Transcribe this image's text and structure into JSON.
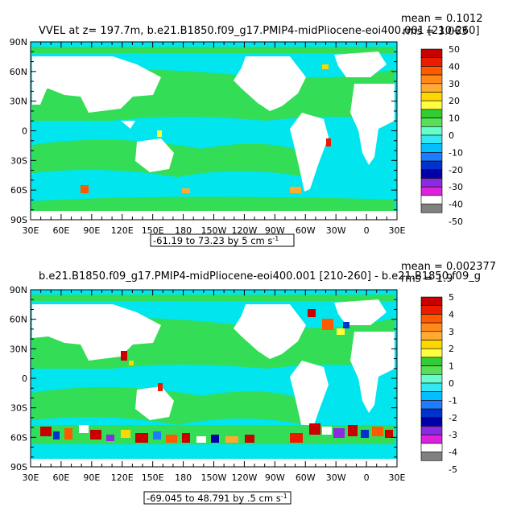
{
  "chart_data": [
    {
      "type": "heatmap",
      "title": "VVEL at z= 197.7m, b.e21.B1850.f09_g17.PMIP4-midPliocene-eoi400.001 [210-260]",
      "stats": {
        "mean": "mean = 0.1012",
        "rms": "rms = 3.063"
      },
      "x_ticks": [
        "30E",
        "60E",
        "90E",
        "120E",
        "150E",
        "180",
        "150W",
        "120W",
        "90W",
        "60W",
        "30W",
        "0",
        "30E"
      ],
      "y_ticks": [
        "90N",
        "60N",
        "30N",
        "0",
        "30S",
        "60S",
        "90S"
      ],
      "range_label": "-61.19 to 73.23 by 5 cm s",
      "range_sup": "-1",
      "colorbar": {
        "levels": [
          "50",
          "40",
          "30",
          "20",
          "10",
          "0",
          "-10",
          "-20",
          "-30",
          "-40",
          "-50"
        ],
        "colors": [
          "#c80000",
          "#ee1a00",
          "#ff5a00",
          "#ff8a1a",
          "#ffaa33",
          "#ffd700",
          "#ffff40",
          "#33cc33",
          "#55e055",
          "#66ffcc",
          "#33e8f0",
          "#00bfff",
          "#1e7cff",
          "#0033cc",
          "#0000aa",
          "#8a2be2",
          "#dd22dd",
          "#ffffff",
          "#808080"
        ]
      }
    },
    {
      "type": "heatmap",
      "title": "b.e21.B1850.f09_g17.PMIP4-midPliocene-eoi400.001 [210-260] - b.e21.B1850.f09_g",
      "stats": {
        "mean": "mean = 0.002377",
        "rms": "rms = 1.9"
      },
      "x_ticks": [
        "30E",
        "60E",
        "90E",
        "120E",
        "150E",
        "180",
        "150W",
        "120W",
        "90W",
        "60W",
        "30W",
        "0",
        "30E"
      ],
      "y_ticks": [
        "90N",
        "60N",
        "30N",
        "0",
        "30S",
        "60S",
        "90S"
      ],
      "range_label": "-69.045 to 48.791 by .5 cm s",
      "range_sup": "-1",
      "colorbar": {
        "levels": [
          "5",
          "4",
          "3",
          "2",
          "1",
          "0",
          "-1",
          "-2",
          "-3",
          "-4",
          "-5"
        ],
        "colors": [
          "#c80000",
          "#ee1a00",
          "#ff5a00",
          "#ff8a1a",
          "#ffaa33",
          "#ffd700",
          "#ffff40",
          "#33cc33",
          "#55e055",
          "#66ffcc",
          "#33e8f0",
          "#00bfff",
          "#1e7cff",
          "#0033cc",
          "#0000aa",
          "#8a2be2",
          "#dd22dd",
          "#ffffff",
          "#808080"
        ]
      }
    }
  ]
}
